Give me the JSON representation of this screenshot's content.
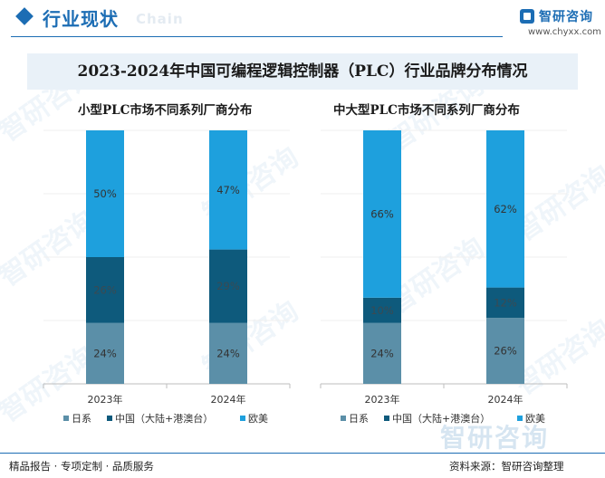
{
  "header": {
    "title": "行业现状",
    "ghost_text": "Chain",
    "brand_name": "智研咨询",
    "brand_url": "www.chyxx.com"
  },
  "main_title": "2023-2024年中国可编程逻辑控制器（PLC）行业品牌分布情况",
  "footer": {
    "left": "精品报告 · 专项定制 · 品质服务",
    "right": "资料来源：智研咨询整理"
  },
  "watermark": {
    "text": "智研咨询"
  },
  "colors": {
    "japan": "#5b8fa8",
    "china": "#0e5a7c",
    "euro": "#1ea0dd",
    "brand": "#1c6db4"
  },
  "chart_data": [
    {
      "type": "bar",
      "stacked": true,
      "title": "小型PLC市场不同系列厂商分布",
      "categories": [
        "2023年",
        "2024年"
      ],
      "series": [
        {
          "name": "日系",
          "values": [
            24,
            24
          ],
          "labels": [
            "24%",
            "24%"
          ]
        },
        {
          "name": "中国（大陆+港澳台）",
          "values": [
            26,
            29
          ],
          "labels": [
            "26%",
            "29%"
          ]
        },
        {
          "name": "欧美",
          "values": [
            50,
            47
          ],
          "labels": [
            "50%",
            "47%"
          ]
        }
      ],
      "ylim": [
        0,
        100
      ],
      "legend_position": "bottom"
    },
    {
      "type": "bar",
      "stacked": true,
      "title": "中大型PLC市场不同系列厂商分布",
      "categories": [
        "2023年",
        "2024年"
      ],
      "series": [
        {
          "name": "日系",
          "values": [
            24,
            26
          ],
          "labels": [
            "24%",
            "26%"
          ]
        },
        {
          "name": "中国（大陆+港澳台）",
          "values": [
            10,
            12
          ],
          "labels": [
            "10%",
            "12%"
          ]
        },
        {
          "name": "欧美",
          "values": [
            66,
            62
          ],
          "labels": [
            "66%",
            "62%"
          ]
        }
      ],
      "ylim": [
        0,
        100
      ],
      "legend_position": "bottom"
    }
  ]
}
